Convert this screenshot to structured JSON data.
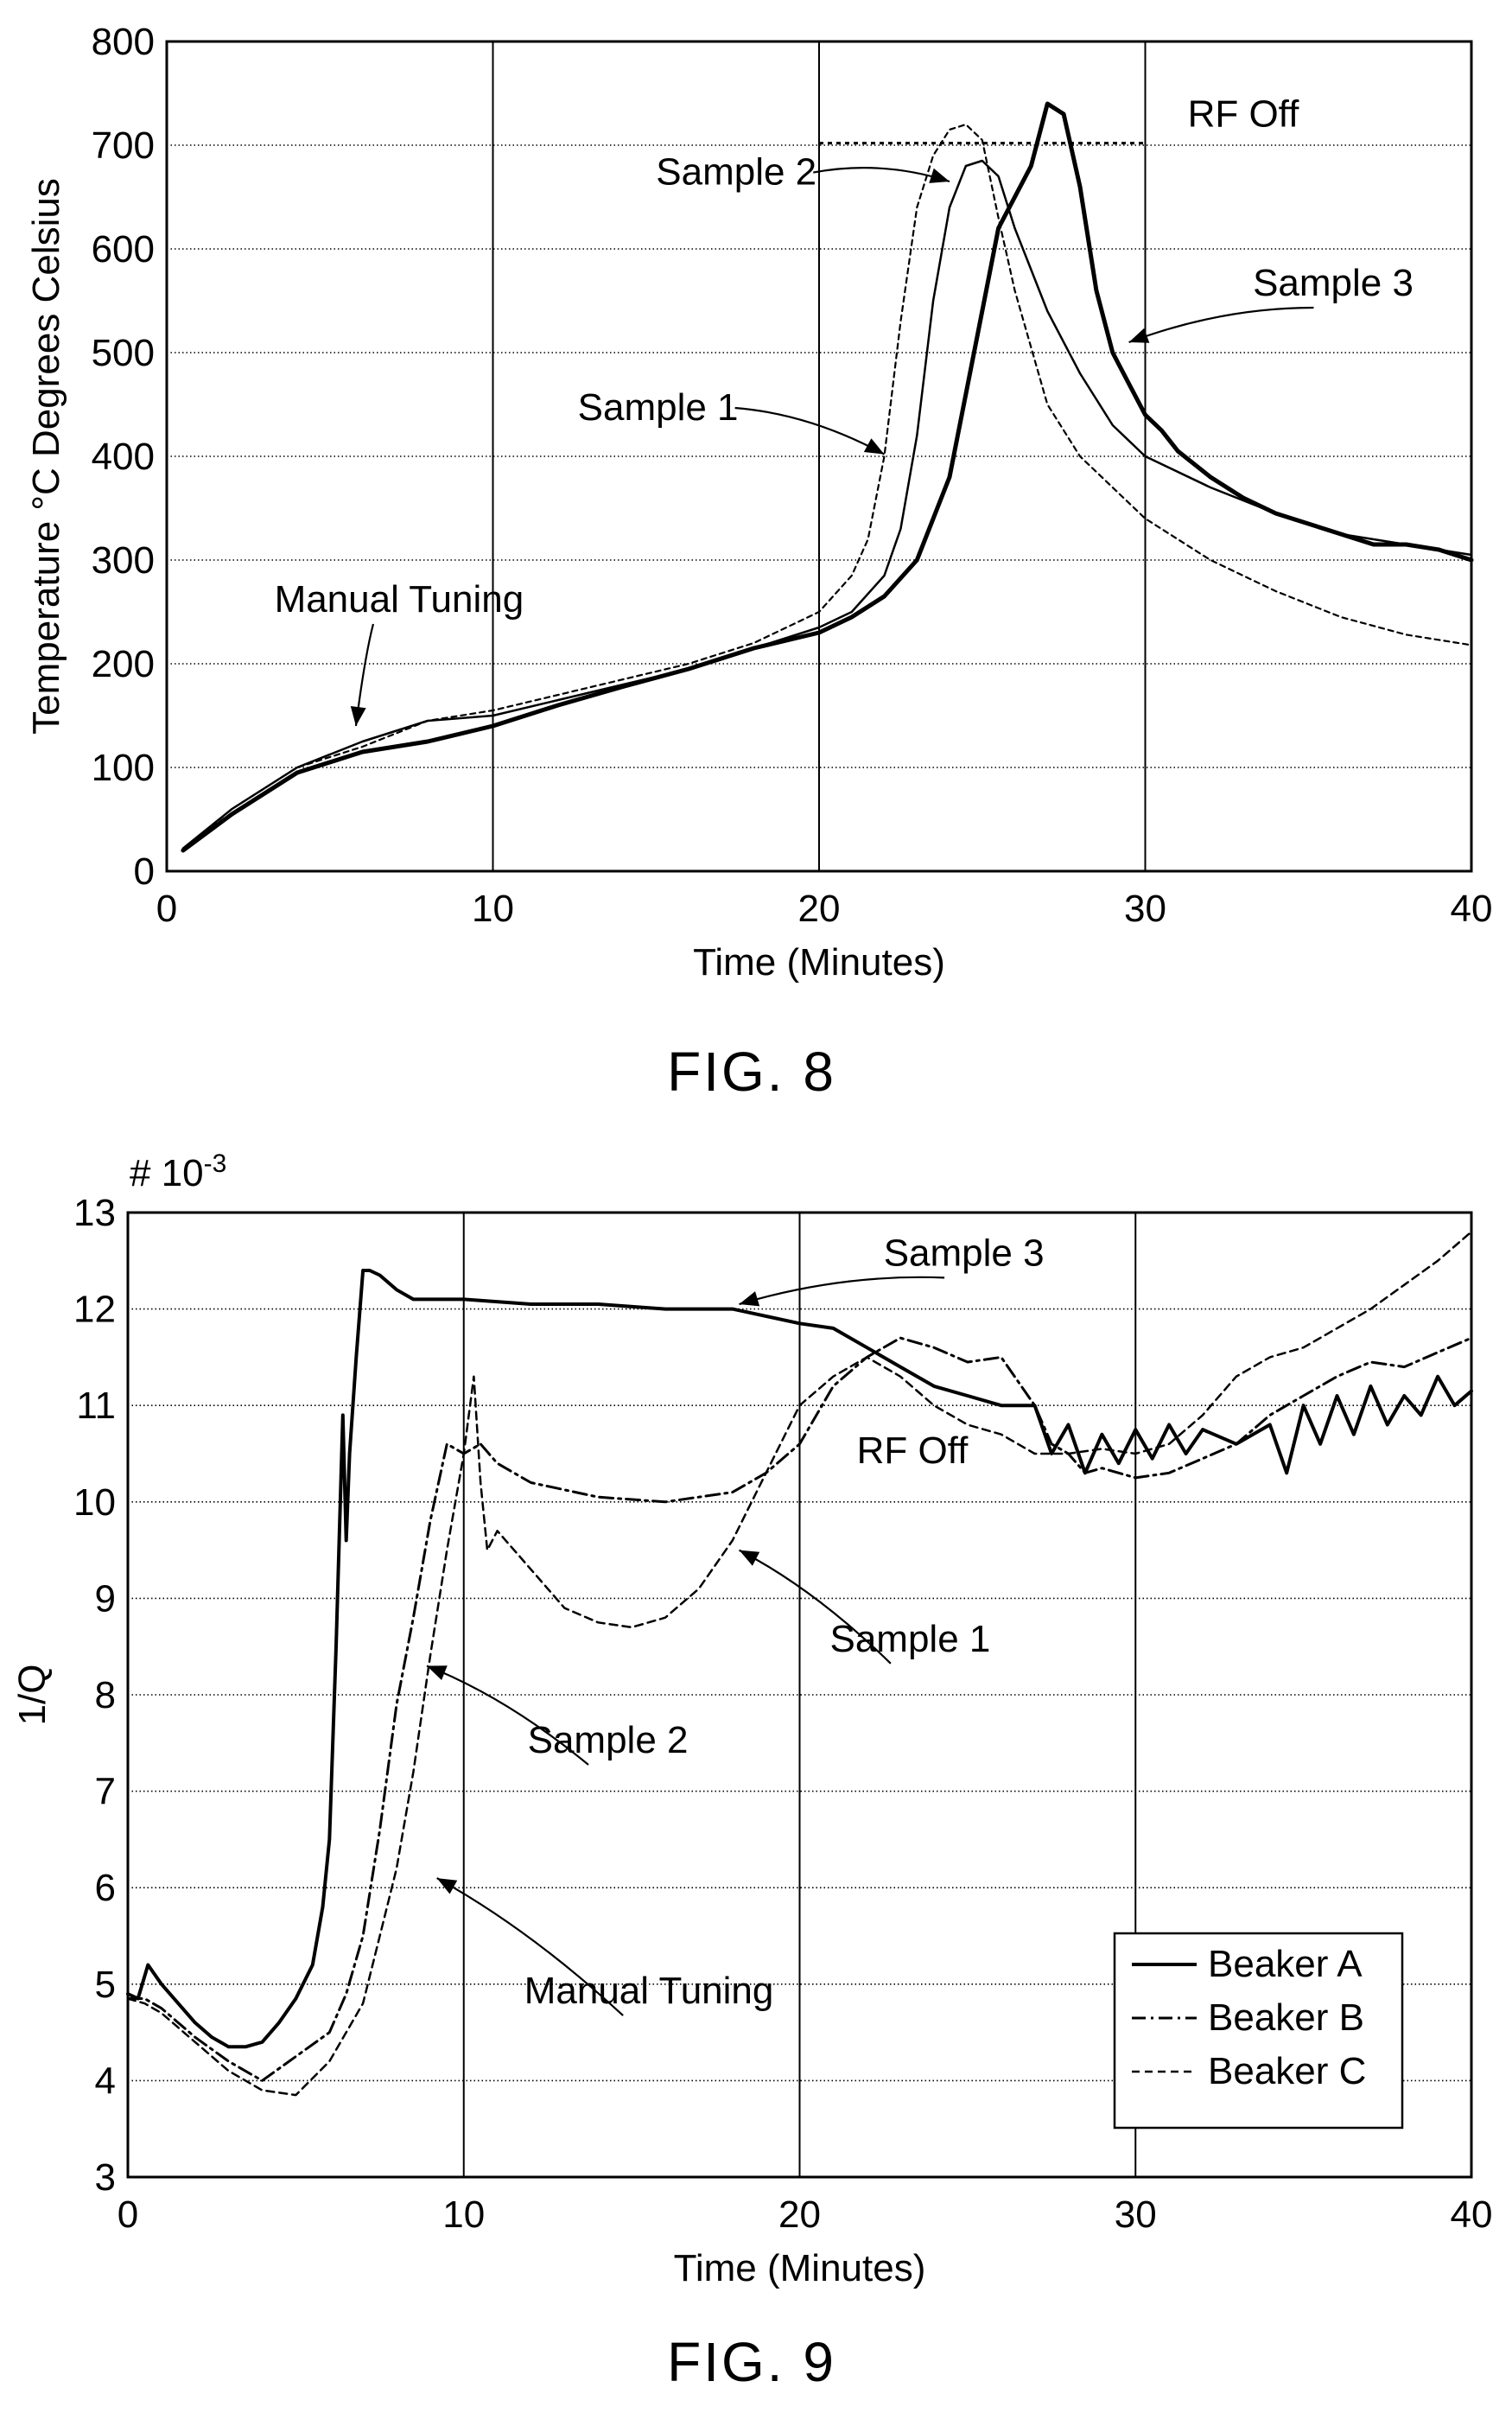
{
  "figures": [
    {
      "label": "FIG. 8"
    },
    {
      "label": "FIG. 9",
      "multiplier_label": "# 10",
      "multiplier_exp": "-3"
    }
  ],
  "chart_data": [
    {
      "type": "line",
      "xlabel": "Time (Minutes)",
      "ylabel": "Temperature °C Degrees Celsius",
      "xlim": [
        0,
        40
      ],
      "ylim": [
        0,
        800
      ],
      "xticks": [
        0,
        10,
        20,
        30,
        40
      ],
      "yticks": [
        0,
        100,
        200,
        300,
        400,
        500,
        600,
        700,
        800
      ],
      "grid": true,
      "annotations": [
        {
          "text": "RF Off",
          "x": 31.3,
          "y": 718,
          "arrow_to": null
        },
        {
          "text": "Sample 2",
          "x": 15.0,
          "y": 662,
          "arrow_to": [
            24.0,
            665
          ]
        },
        {
          "text": "Sample 3",
          "x": 33.3,
          "y": 555,
          "arrow_to": [
            29.5,
            510
          ]
        },
        {
          "text": "Sample 1",
          "x": 12.6,
          "y": 435,
          "arrow_to": [
            22.0,
            402
          ]
        },
        {
          "text": "Manual Tuning",
          "x": 3.3,
          "y": 250,
          "arrow_to": [
            5.8,
            140
          ]
        }
      ],
      "rf_off_line": {
        "x": [
          20,
          30
        ],
        "y": 702
      },
      "series": [
        {
          "style": "thin-solid",
          "x": [
            0.5,
            2,
            4,
            6,
            8,
            10,
            12,
            14,
            16,
            18,
            20,
            21,
            22,
            22.5,
            23,
            23.5,
            24,
            24.5,
            25,
            25.5,
            26,
            27,
            28,
            29,
            30,
            32,
            34,
            36,
            38,
            40
          ],
          "y": [
            22,
            60,
            100,
            125,
            145,
            150,
            165,
            180,
            195,
            215,
            235,
            250,
            285,
            330,
            420,
            550,
            640,
            680,
            685,
            670,
            620,
            540,
            480,
            430,
            400,
            370,
            345,
            325,
            315,
            305
          ]
        },
        {
          "style": "thin-dashed",
          "x": [
            0.5,
            2,
            4,
            6,
            8,
            10,
            12,
            14,
            16,
            18,
            20,
            21,
            21.5,
            22,
            22.5,
            23,
            23.5,
            24,
            24.5,
            25,
            25.5,
            26,
            27,
            28,
            30,
            32,
            34,
            36,
            38,
            40
          ],
          "y": [
            20,
            60,
            100,
            120,
            145,
            155,
            170,
            185,
            200,
            220,
            250,
            285,
            320,
            400,
            530,
            640,
            690,
            715,
            720,
            705,
            630,
            560,
            450,
            400,
            340,
            300,
            270,
            245,
            228,
            218
          ]
        },
        {
          "style": "thick-solid",
          "x": [
            0.5,
            2,
            4,
            6,
            8,
            10,
            12,
            14,
            16,
            18,
            20,
            21,
            22,
            23,
            24,
            25,
            25.5,
            26,
            26.5,
            27,
            27.5,
            28,
            28.5,
            29,
            29.5,
            30,
            30.5,
            31,
            32,
            33,
            34,
            35,
            36,
            37,
            38,
            39,
            40
          ],
          "y": [
            20,
            55,
            95,
            115,
            125,
            140,
            160,
            178,
            195,
            215,
            230,
            245,
            265,
            300,
            380,
            540,
            620,
            650,
            680,
            740,
            730,
            660,
            560,
            500,
            470,
            440,
            425,
            405,
            380,
            360,
            345,
            335,
            325,
            315,
            315,
            310,
            300
          ]
        }
      ]
    },
    {
      "type": "line",
      "xlabel": "Time (Minutes)",
      "ylabel": "1/Q",
      "xlim": [
        0,
        40
      ],
      "ylim": [
        3,
        13
      ],
      "xticks": [
        0,
        10,
        20,
        30,
        40
      ],
      "yticks": [
        3,
        4,
        5,
        6,
        7,
        8,
        9,
        10,
        11,
        12,
        13
      ],
      "grid": true,
      "legend_position": "bottom-right",
      "annotations": [
        {
          "text": "Sample 3",
          "x": 22.5,
          "y": 12.45,
          "arrow_to": [
            18.2,
            12.05
          ]
        },
        {
          "text": "RF Off",
          "x": 21.7,
          "y": 10.4,
          "arrow_to": null
        },
        {
          "text": "Sample 1",
          "x": 20.9,
          "y": 8.45,
          "arrow_to": [
            18.2,
            9.5
          ]
        },
        {
          "text": "Sample 2",
          "x": 11.9,
          "y": 7.4,
          "arrow_to": [
            8.9,
            8.3
          ]
        },
        {
          "text": "Manual Tuning",
          "x": 11.8,
          "y": 4.8,
          "arrow_to": [
            9.2,
            6.1
          ]
        }
      ],
      "series": [
        {
          "name": "Beaker A",
          "style": "solid",
          "x": [
            0,
            0.3,
            0.6,
            1,
            1.5,
            2,
            2.5,
            3,
            3.5,
            4,
            4.5,
            5,
            5.5,
            5.8,
            6,
            6.2,
            6.4,
            6.5,
            6.6,
            6.8,
            7,
            7.2,
            7.5,
            8,
            8.5,
            9,
            10,
            12,
            14,
            16,
            18,
            20,
            21,
            22,
            23,
            24,
            25,
            26,
            27,
            27.5,
            28,
            28.5,
            29,
            29.5,
            30,
            30.5,
            31,
            31.5,
            32,
            33,
            34,
            34.5,
            35,
            35.5,
            36,
            36.5,
            37,
            37.5,
            38,
            38.5,
            39,
            39.5,
            40
          ],
          "y": [
            4.9,
            4.85,
            5.2,
            5.0,
            4.8,
            4.6,
            4.45,
            4.35,
            4.35,
            4.4,
            4.6,
            4.85,
            5.2,
            5.8,
            6.5,
            8.5,
            10.9,
            9.6,
            10.5,
            11.5,
            12.4,
            12.4,
            12.35,
            12.2,
            12.1,
            12.1,
            12.1,
            12.05,
            12.05,
            12.0,
            12.0,
            11.85,
            11.8,
            11.6,
            11.4,
            11.2,
            11.1,
            11.0,
            11.0,
            10.5,
            10.8,
            10.3,
            10.7,
            10.4,
            10.75,
            10.45,
            10.8,
            10.5,
            10.75,
            10.6,
            10.8,
            10.3,
            11.0,
            10.6,
            11.1,
            10.7,
            11.2,
            10.8,
            11.1,
            10.9,
            11.3,
            11.0,
            11.15
          ]
        },
        {
          "name": "Beaker B",
          "style": "dash-dot",
          "x": [
            0,
            0.5,
            1,
            2,
            3,
            4,
            5,
            6,
            6.5,
            7,
            7.5,
            8,
            8.5,
            9,
            9.5,
            10,
            10.5,
            11,
            12,
            14,
            16,
            18,
            19,
            20,
            21,
            22,
            23,
            24,
            25,
            26,
            27,
            27.5,
            28,
            28.5,
            29,
            30,
            31,
            32,
            33,
            34,
            35,
            36,
            37,
            38,
            39,
            40
          ],
          "y": [
            4.85,
            4.85,
            4.75,
            4.45,
            4.2,
            4.0,
            4.25,
            4.5,
            4.9,
            5.5,
            6.6,
            7.9,
            8.8,
            9.8,
            10.6,
            10.5,
            10.6,
            10.4,
            10.2,
            10.05,
            10.0,
            10.1,
            10.3,
            10.6,
            11.2,
            11.5,
            11.7,
            11.6,
            11.45,
            11.5,
            11.0,
            10.6,
            10.5,
            10.3,
            10.35,
            10.25,
            10.3,
            10.45,
            10.6,
            10.9,
            11.1,
            11.3,
            11.45,
            11.4,
            11.55,
            11.7
          ]
        },
        {
          "name": "Beaker C",
          "style": "dashed",
          "x": [
            0,
            0.5,
            1,
            2,
            3,
            4,
            5,
            6,
            7,
            7.5,
            8,
            8.5,
            9,
            9.5,
            10,
            10.3,
            10.5,
            10.7,
            11,
            12,
            13,
            14,
            15,
            16,
            17,
            18,
            19,
            20,
            21,
            22,
            23,
            24,
            25,
            26,
            27,
            28,
            29,
            30,
            31,
            32,
            33,
            34,
            35,
            36,
            37,
            38,
            39,
            40
          ],
          "y": [
            4.85,
            4.8,
            4.7,
            4.4,
            4.1,
            3.9,
            3.85,
            4.2,
            4.8,
            5.5,
            6.2,
            7.2,
            8.4,
            9.5,
            10.5,
            11.3,
            10.2,
            9.5,
            9.7,
            9.3,
            8.9,
            8.75,
            8.7,
            8.8,
            9.1,
            9.6,
            10.3,
            11.0,
            11.3,
            11.5,
            11.3,
            11.0,
            10.8,
            10.7,
            10.5,
            10.5,
            10.55,
            10.5,
            10.6,
            10.9,
            11.3,
            11.5,
            11.6,
            11.8,
            12.0,
            12.25,
            12.5,
            12.8
          ]
        }
      ]
    }
  ]
}
